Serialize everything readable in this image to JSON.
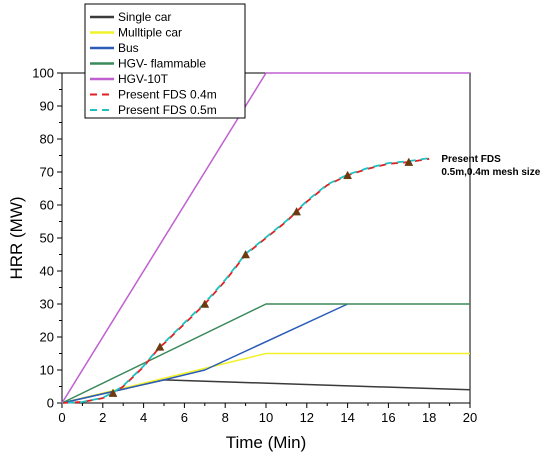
{
  "chart_data": {
    "type": "line",
    "title": "",
    "xlabel": "Time (Min)",
    "ylabel": "HRR (MW)",
    "xlim": [
      0,
      20
    ],
    "ylim": [
      0,
      100
    ],
    "xticks": [
      "0",
      "2",
      "4",
      "6",
      "8",
      "10",
      "12",
      "14",
      "16",
      "18",
      "20"
    ],
    "yticks": [
      "0",
      "10",
      "20",
      "30",
      "40",
      "50",
      "60",
      "70",
      "80",
      "90",
      "100"
    ],
    "grid": false,
    "legend_position": "top-left",
    "series": [
      {
        "name": "Single car",
        "color": "#3a3a3a",
        "dash": "solid",
        "x": [
          0,
          5,
          20
        ],
        "y": [
          0,
          7,
          4
        ]
      },
      {
        "name": "Mulltiple car",
        "color": "#f2f22a",
        "dash": "solid",
        "x": [
          0,
          10,
          20
        ],
        "y": [
          0,
          15,
          15
        ]
      },
      {
        "name": "Bus",
        "color": "#2a5cb8",
        "dash": "solid",
        "x": [
          0,
          5,
          7,
          14
        ],
        "y": [
          0,
          7,
          10,
          30
        ]
      },
      {
        "name": "HGV- flammable",
        "color": "#3a8a5a",
        "dash": "solid",
        "x": [
          0,
          10,
          20
        ],
        "y": [
          0,
          30,
          30
        ]
      },
      {
        "name": "HGV-10T",
        "color": "#c060d0",
        "dash": "solid",
        "x": [
          0,
          10,
          20
        ],
        "y": [
          0,
          100,
          100
        ]
      },
      {
        "name": "Present FDS 0.4m",
        "color": "#e02020",
        "dash": "dashed",
        "x": [
          0,
          1,
          2,
          2.5,
          3,
          4,
          4.8,
          5,
          6,
          7,
          8,
          9,
          10,
          11,
          11.5,
          12,
          13,
          14,
          15,
          16,
          17,
          18
        ],
        "y": [
          0,
          0.3,
          1.5,
          3,
          5,
          11,
          17,
          18,
          24,
          30,
          37,
          45,
          50,
          55,
          58,
          61,
          66,
          69,
          71,
          72.5,
          73,
          74
        ]
      },
      {
        "name": "Present FDS 0.5m",
        "color": "#20c0c0",
        "dash": "dashed",
        "x": [
          0,
          1,
          2,
          2.5,
          3,
          4,
          4.8,
          5,
          6,
          7,
          8,
          9,
          10,
          11,
          11.5,
          12,
          13,
          14,
          15,
          16,
          17,
          18
        ],
        "y": [
          0,
          0.3,
          1.6,
          3.2,
          5.2,
          11.2,
          17.2,
          18.2,
          24.3,
          30.3,
          37.3,
          45.2,
          50.2,
          55.2,
          58.2,
          61.2,
          66.2,
          69.2,
          71.2,
          72.7,
          73.3,
          74.2
        ]
      }
    ],
    "annotations": [
      {
        "text": "Present FDS",
        "x": 18.3,
        "y": 74
      },
      {
        "text": "0.5m,0.4m mesh size",
        "x": 18.3,
        "y": 70
      }
    ]
  }
}
